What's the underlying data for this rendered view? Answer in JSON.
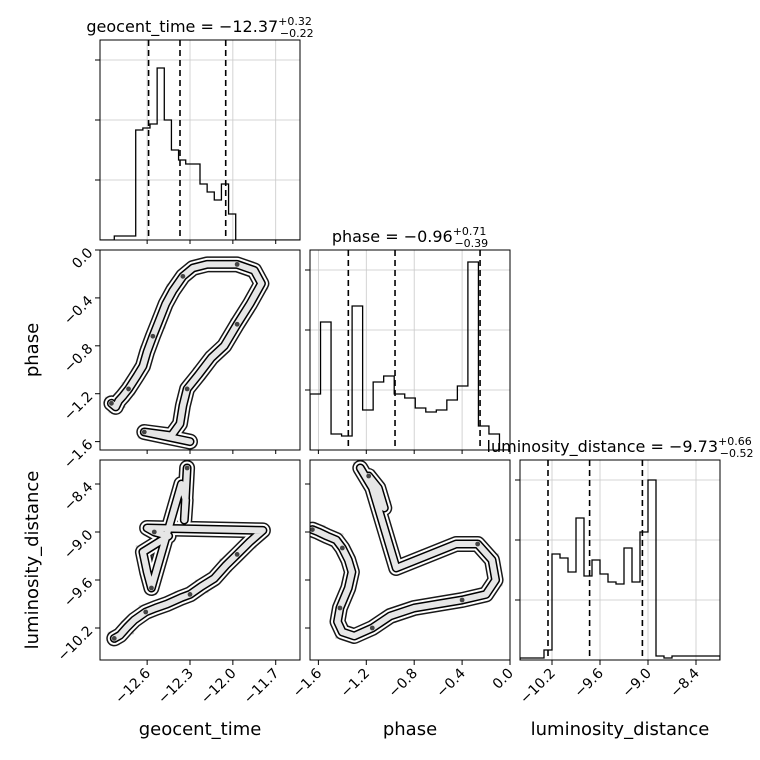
{
  "chart_data": {
    "type": "corner",
    "parameters": [
      "geocent_time",
      "phase",
      "luminosity_distance"
    ],
    "axis_labels": [
      "geocent_time",
      "phase",
      "luminosity_distance"
    ],
    "titles": [
      {
        "name": "geocent_time",
        "median": "−12.37",
        "plus": "+0.32",
        "minus": "−0.22"
      },
      {
        "name": "phase",
        "median": "−0.96",
        "plus": "+0.71",
        "minus": "−0.39"
      },
      {
        "name": "luminosity_distance",
        "median": "−9.73",
        "plus": "+0.66",
        "minus": "−0.52"
      }
    ],
    "ranges": [
      [
        -12.93,
        -11.53
      ],
      [
        -1.67,
        0.0
      ],
      [
        -10.6,
        -8.1
      ]
    ],
    "ticks": [
      {
        "values": [
          -12.6,
          -12.3,
          -12.0,
          -11.7
        ],
        "labels": [
          "−12.6",
          "−12.3",
          "−12.0",
          "−11.7"
        ]
      },
      {
        "values": [
          -1.6,
          -1.2,
          -0.8,
          -0.4,
          0.0
        ],
        "labels": [
          "−1.6",
          "−1.2",
          "−0.8",
          "−0.4",
          "0.0"
        ]
      },
      {
        "values": [
          -10.2,
          -9.6,
          -9.0,
          -8.4
        ],
        "labels": [
          "−10.2",
          "−9.6",
          "−9.0",
          "−8.4"
        ]
      }
    ],
    "quantiles": [
      [
        -12.59,
        -12.37,
        -12.05
      ],
      [
        -1.35,
        -0.96,
        -0.25
      ],
      [
        -10.25,
        -9.73,
        -9.07
      ]
    ],
    "histograms": [
      {
        "edges_range": [
          -12.93,
          -11.53
        ],
        "counts": [
          0,
          0,
          0.02,
          0.02,
          0.02,
          0.55,
          0.56,
          0.58,
          0.86,
          0.6,
          0.45,
          0.4,
          0.38,
          0.38,
          0.28,
          0.24,
          0.2,
          0.28,
          0.13,
          0,
          0,
          0,
          0,
          0,
          0,
          0,
          0,
          0
        ]
      },
      {
        "edges_range": [
          -1.67,
          0.0
        ],
        "counts": [
          0.28,
          0.64,
          0.08,
          0.07,
          0.72,
          0.2,
          0.34,
          0.37,
          0.28,
          0.26,
          0.21,
          0.19,
          0.2,
          0.25,
          0.32,
          0.94,
          0.12,
          0.08,
          0.0
        ]
      },
      {
        "edges_range": [
          -10.6,
          -8.1
        ],
        "counts": [
          0.01,
          0.01,
          0.01,
          0.05,
          0.53,
          0.51,
          0.44,
          0.71,
          0.42,
          0.5,
          0.43,
          0.39,
          0.38,
          0.56,
          0.39,
          0.64,
          0.9,
          0.02,
          0.01,
          0.02,
          0.02,
          0.02,
          0.02,
          0.02,
          0.02
        ]
      }
    ],
    "histogram_ylim": [
      0,
      1.0
    ],
    "grid": true,
    "samples_2d": {
      "geocent_time__phase": [
        {
          "x": -12.85,
          "y": -1.28
        },
        {
          "x": -12.82,
          "y": -1.31
        },
        {
          "x": -12.8,
          "y": -1.26
        },
        {
          "x": -12.77,
          "y": -1.22
        },
        {
          "x": -12.73,
          "y": -1.16
        },
        {
          "x": -12.67,
          "y": -1.05
        },
        {
          "x": -12.63,
          "y": -0.97
        },
        {
          "x": -12.6,
          "y": -0.85
        },
        {
          "x": -12.56,
          "y": -0.72
        },
        {
          "x": -12.52,
          "y": -0.6
        },
        {
          "x": -12.47,
          "y": -0.45
        },
        {
          "x": -12.42,
          "y": -0.34
        },
        {
          "x": -12.35,
          "y": -0.22
        },
        {
          "x": -12.28,
          "y": -0.15
        },
        {
          "x": -12.18,
          "y": -0.12
        },
        {
          "x": -12.08,
          "y": -0.12
        },
        {
          "x": -11.97,
          "y": -0.12
        },
        {
          "x": -11.85,
          "y": -0.17
        },
        {
          "x": -11.8,
          "y": -0.28
        },
        {
          "x": -11.88,
          "y": -0.45
        },
        {
          "x": -11.97,
          "y": -0.62
        },
        {
          "x": -12.06,
          "y": -0.8
        },
        {
          "x": -12.15,
          "y": -0.9
        },
        {
          "x": -12.24,
          "y": -1.04
        },
        {
          "x": -12.32,
          "y": -1.16
        },
        {
          "x": -12.35,
          "y": -1.3
        },
        {
          "x": -12.37,
          "y": -1.45
        },
        {
          "x": -12.43,
          "y": -1.55
        },
        {
          "x": -12.62,
          "y": -1.52
        },
        {
          "x": -12.3,
          "y": -1.6
        }
      ],
      "geocent_time__luminosity_distance": [
        {
          "x": -12.83,
          "y": -10.33
        },
        {
          "x": -12.79,
          "y": -10.29
        },
        {
          "x": -12.74,
          "y": -10.19
        },
        {
          "x": -12.69,
          "y": -10.1
        },
        {
          "x": -12.61,
          "y": -10.0
        },
        {
          "x": -12.54,
          "y": -9.95
        },
        {
          "x": -12.46,
          "y": -9.9
        },
        {
          "x": -12.36,
          "y": -9.82
        },
        {
          "x": -12.3,
          "y": -9.78
        },
        {
          "x": -12.22,
          "y": -9.68
        },
        {
          "x": -12.13,
          "y": -9.58
        },
        {
          "x": -12.05,
          "y": -9.42
        },
        {
          "x": -11.97,
          "y": -9.28
        },
        {
          "x": -11.88,
          "y": -9.12
        },
        {
          "x": -11.79,
          "y": -8.98
        },
        {
          "x": -12.6,
          "y": -8.95
        },
        {
          "x": -12.55,
          "y": -9.0
        },
        {
          "x": -12.45,
          "y": -9.05
        },
        {
          "x": -12.63,
          "y": -9.25
        },
        {
          "x": -12.6,
          "y": -9.5
        },
        {
          "x": -12.57,
          "y": -9.7
        },
        {
          "x": -12.36,
          "y": -8.4
        },
        {
          "x": -12.33,
          "y": -8.6
        },
        {
          "x": -12.34,
          "y": -8.85
        },
        {
          "x": -12.32,
          "y": -8.2
        }
      ],
      "phase__luminosity_distance": [
        {
          "x": -1.65,
          "y": -8.97
        },
        {
          "x": -1.6,
          "y": -9.0
        },
        {
          "x": -1.53,
          "y": -9.05
        },
        {
          "x": -1.45,
          "y": -9.1
        },
        {
          "x": -1.4,
          "y": -9.2
        },
        {
          "x": -1.35,
          "y": -9.35
        },
        {
          "x": -1.32,
          "y": -9.5
        },
        {
          "x": -1.35,
          "y": -9.7
        },
        {
          "x": -1.42,
          "y": -9.95
        },
        {
          "x": -1.44,
          "y": -10.12
        },
        {
          "x": -1.4,
          "y": -10.25
        },
        {
          "x": -1.3,
          "y": -10.3
        },
        {
          "x": -1.15,
          "y": -10.2
        },
        {
          "x": -1.0,
          "y": -10.05
        },
        {
          "x": -0.8,
          "y": -9.95
        },
        {
          "x": -0.6,
          "y": -9.9
        },
        {
          "x": -0.4,
          "y": -9.85
        },
        {
          "x": -0.2,
          "y": -9.78
        },
        {
          "x": -0.12,
          "y": -9.6
        },
        {
          "x": -0.15,
          "y": -9.35
        },
        {
          "x": -0.27,
          "y": -9.15
        },
        {
          "x": -0.45,
          "y": -9.15
        },
        {
          "x": -0.7,
          "y": -9.3
        },
        {
          "x": -0.95,
          "y": -9.45
        },
        {
          "x": -1.18,
          "y": -8.3
        },
        {
          "x": -1.1,
          "y": -8.45
        },
        {
          "x": -1.05,
          "y": -8.7
        },
        {
          "x": -1.25,
          "y": -8.2
        }
      ]
    }
  }
}
